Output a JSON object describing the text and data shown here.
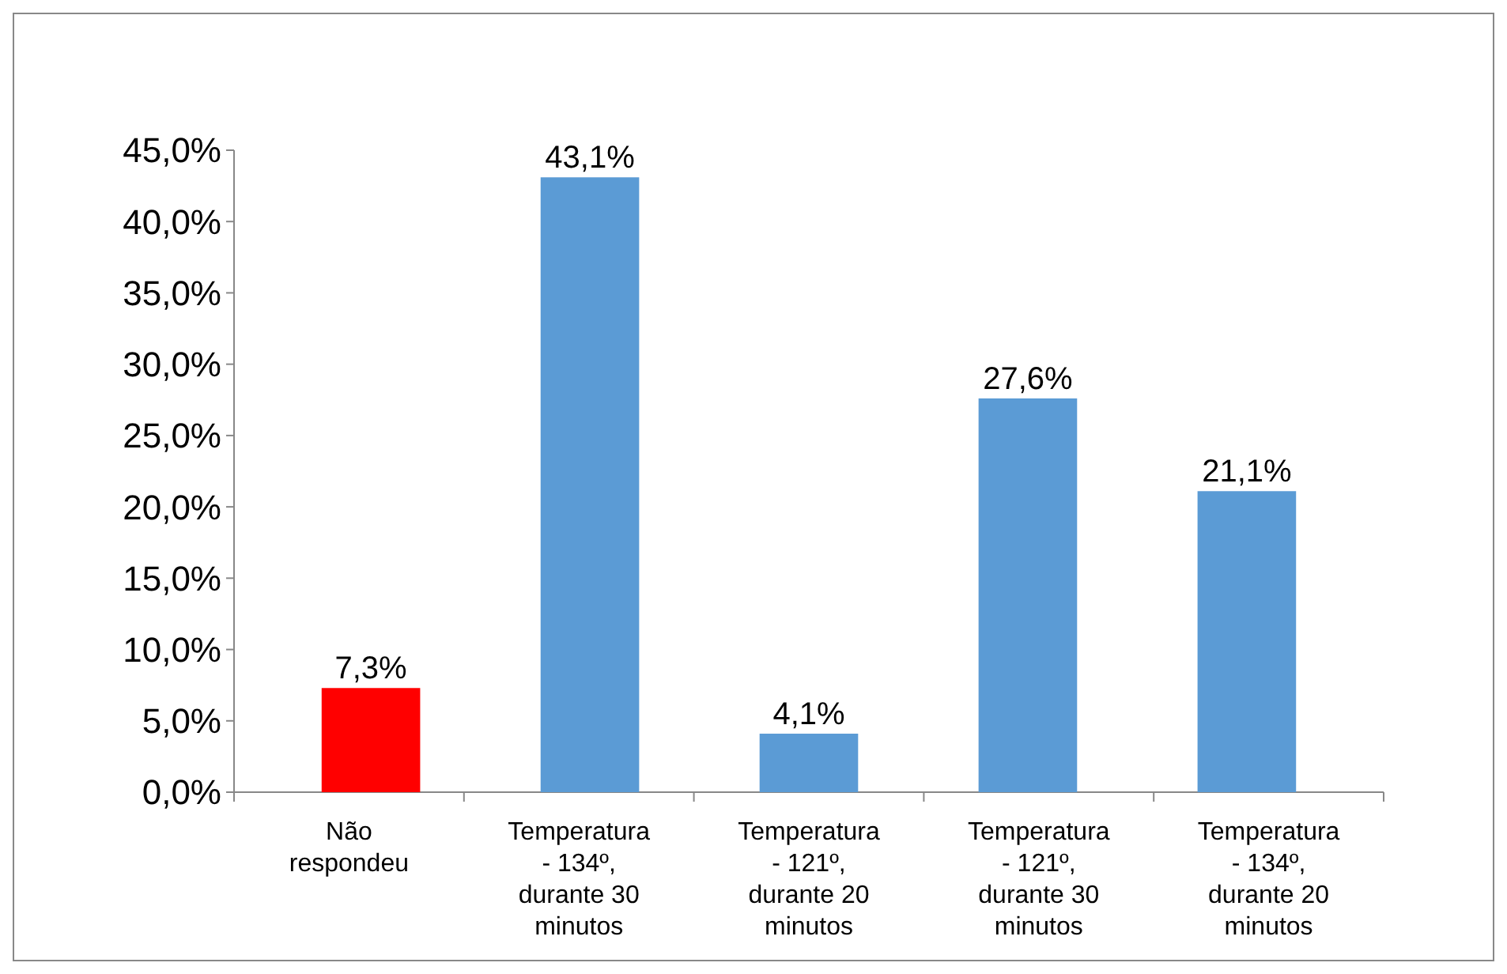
{
  "chart_data": {
    "type": "bar",
    "categories": [
      "Não respondeu",
      "Temperatura - 134º, durante 30 minutos",
      "Temperatura - 121º, durante 20 minutos",
      "Temperatura - 121º, durante 30 minutos",
      "Temperatura - 134º, durante 20 minutos"
    ],
    "values": [
      7.3,
      43.1,
      4.1,
      27.6,
      21.1
    ],
    "colors": [
      "#ff0000",
      "#5b9bd5",
      "#5b9bd5",
      "#5b9bd5",
      "#5b9bd5"
    ],
    "value_labels": [
      "7,3%",
      "43,1%",
      "4,1%",
      "27,6%",
      "21,1%"
    ],
    "ylim": [
      0,
      45
    ],
    "yticks": [
      {
        "value": 0,
        "label": "0,0%"
      },
      {
        "value": 5,
        "label": "5,0%"
      },
      {
        "value": 10,
        "label": "10,0%"
      },
      {
        "value": 15,
        "label": "15,0%"
      },
      {
        "value": 20,
        "label": "20,0%"
      },
      {
        "value": 25,
        "label": "25,0%"
      },
      {
        "value": 30,
        "label": "30,0%"
      },
      {
        "value": 35,
        "label": "35,0%"
      },
      {
        "value": 40,
        "label": "40,0%"
      },
      {
        "value": 45,
        "label": "45,0%"
      }
    ],
    "grid": false
  }
}
